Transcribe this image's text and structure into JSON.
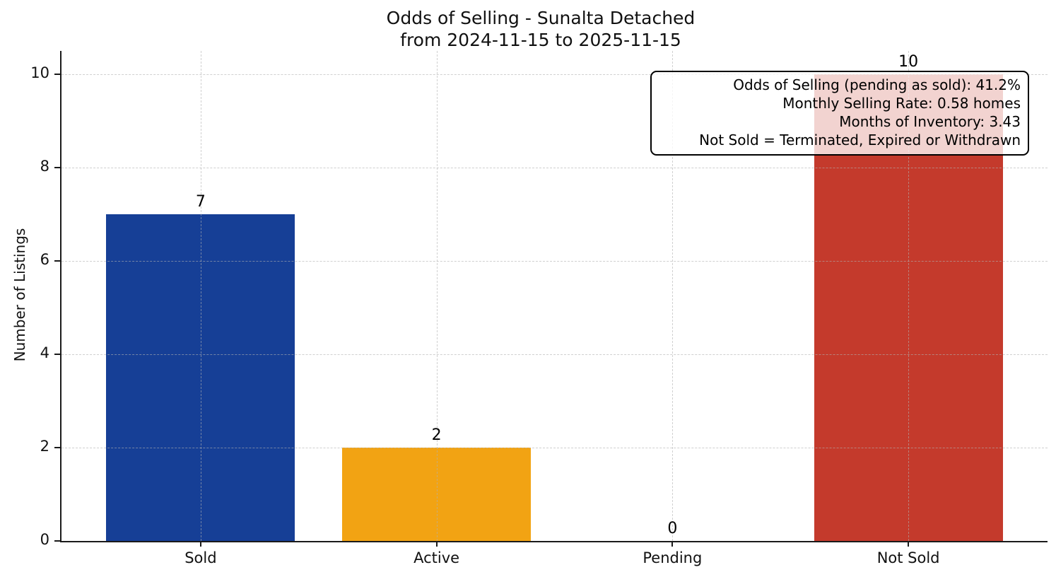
{
  "chart_data": {
    "type": "bar",
    "title": "Odds of Selling - Sunalta Detached\nfrom 2024-11-15 to 2025-11-15",
    "title_lines": [
      "Odds of Selling - Sunalta Detached",
      "from 2024-11-15 to 2025-11-15"
    ],
    "xlabel": "",
    "ylabel": "Number of Listings",
    "categories": [
      "Sold",
      "Active",
      "Pending",
      "Not Sold"
    ],
    "values": [
      7,
      2,
      0,
      10
    ],
    "value_labels": [
      "7",
      "2",
      "0",
      "10"
    ],
    "bar_colors": [
      "#163f96",
      "#f2a313",
      "#808080",
      "#c43a2c"
    ],
    "ylim": [
      0,
      10.5
    ],
    "yticks": [
      0,
      2,
      4,
      6,
      8,
      10
    ],
    "grid": "dashed gray, horizontal and vertical, drawn over bars",
    "legend": "none",
    "annotation_lines": [
      "Odds of Selling (pending as sold): 41.2%",
      "Monthly Selling Rate: 0.58 homes",
      "Months of Inventory: 3.43",
      "Not Sold = Terminated, Expired or Withdrawn"
    ],
    "colors": {
      "axis": "#1a1a1a",
      "grid": "#b0b0b0",
      "annotation_border": "#000000",
      "annotation_background": "rgba(255,255,255,0.78)",
      "text": "#111111"
    }
  }
}
